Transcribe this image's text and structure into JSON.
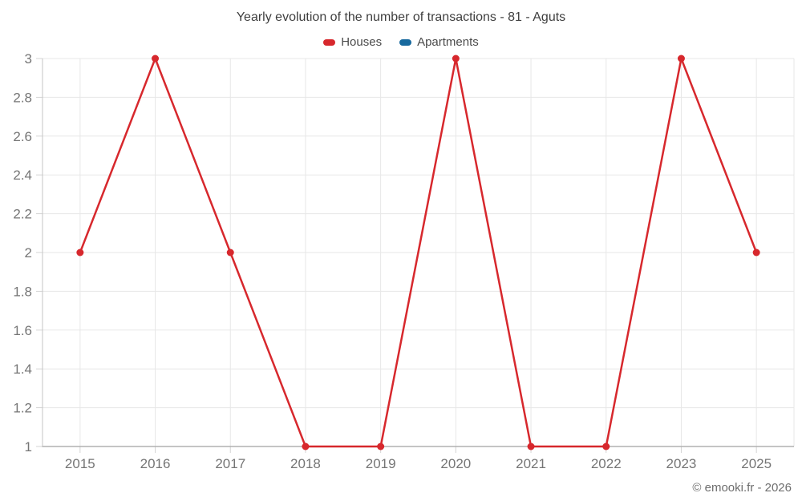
{
  "footer": {
    "credit": "© emooki.fr - 2026"
  },
  "colors": {
    "houses": "#d7282d",
    "apartments": "#17699e",
    "grid": "#e7e7e7",
    "tick": "#d4d4d4",
    "axis": "#b0b0b0",
    "tick_text": "#757575"
  },
  "chart_data": {
    "type": "line",
    "title": "Yearly evolution of the number of transactions - 81 - Aguts",
    "categories": [
      "2015",
      "2016",
      "2017",
      "2018",
      "2019",
      "2020",
      "2021",
      "2022",
      "2023",
      "2025"
    ],
    "series": [
      {
        "name": "Houses",
        "color": "#d7282d",
        "values": [
          2,
          3,
          2,
          1,
          1,
          3,
          1,
          1,
          3,
          2
        ]
      },
      {
        "name": "Apartments",
        "color": "#17699e",
        "values": []
      }
    ],
    "xlabel": "",
    "ylabel": "",
    "ylim": [
      1,
      3
    ],
    "ytick_step": 0.2,
    "ytick_labels": [
      "1",
      "1.2",
      "1.4",
      "1.6",
      "1.8",
      "2",
      "2.2",
      "2.4",
      "2.6",
      "2.8",
      "3"
    ],
    "grid": true,
    "legend_position": "top"
  }
}
